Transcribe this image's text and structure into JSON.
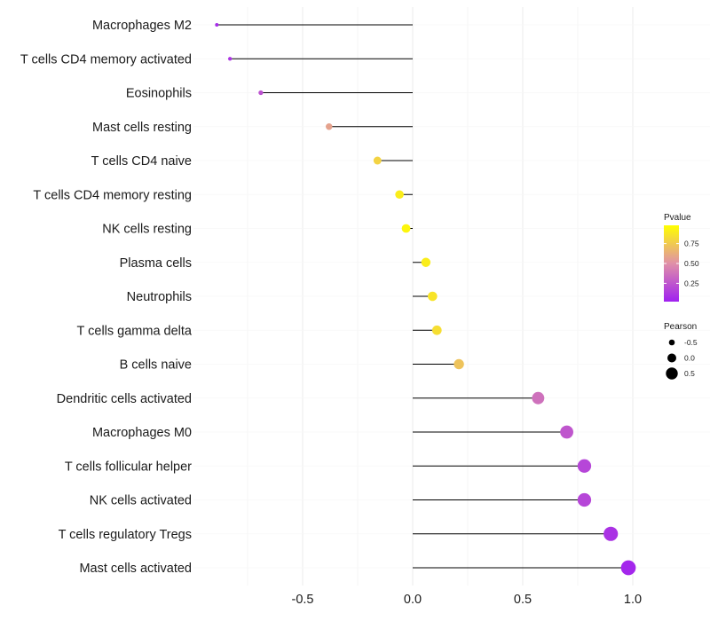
{
  "chart_data": {
    "type": "lollipop",
    "x": {
      "ticks": [
        -0.5,
        0.0,
        0.5,
        1.0
      ],
      "tick_labels": [
        "-0.5",
        "0.0",
        "0.5",
        "1.0"
      ],
      "minor_ticks": [
        -0.75,
        -0.25,
        0.25,
        0.75
      ],
      "range": [
        -0.97,
        1.03
      ]
    },
    "rows": [
      {
        "label": "Macrophages M2",
        "value": -0.89,
        "pvalue": 0.05
      },
      {
        "label": "T cells CD4 memory activated",
        "value": -0.83,
        "pvalue": 0.09
      },
      {
        "label": "Eosinophils",
        "value": -0.69,
        "pvalue": 0.22
      },
      {
        "label": "Mast cells resting",
        "value": -0.38,
        "pvalue": 0.58
      },
      {
        "label": "T cells CD4 naive",
        "value": -0.16,
        "pvalue": 0.8
      },
      {
        "label": "T cells CD4 memory resting",
        "value": -0.06,
        "pvalue": 0.92
      },
      {
        "label": "NK cells resting",
        "value": -0.03,
        "pvalue": 0.96
      },
      {
        "label": "Plasma cells",
        "value": 0.06,
        "pvalue": 0.92
      },
      {
        "label": "Neutrophils",
        "value": 0.09,
        "pvalue": 0.88
      },
      {
        "label": "T cells gamma delta",
        "value": 0.11,
        "pvalue": 0.85
      },
      {
        "label": "B cells naive",
        "value": 0.21,
        "pvalue": 0.73
      },
      {
        "label": "Dendritic cells activated",
        "value": 0.57,
        "pvalue": 0.36
      },
      {
        "label": "Macrophages M0",
        "value": 0.7,
        "pvalue": 0.24
      },
      {
        "label": "T cells follicular helper",
        "value": 0.78,
        "pvalue": 0.17
      },
      {
        "label": "NK cells activated",
        "value": 0.78,
        "pvalue": 0.17
      },
      {
        "label": "T cells regulatory  Tregs",
        "value": 0.9,
        "pvalue": 0.08
      },
      {
        "label": "Mast cells activated",
        "value": 0.98,
        "pvalue": 0.03
      }
    ],
    "legend": {
      "color": {
        "title": "Pvalue",
        "ticks": [
          0.25,
          0.5,
          0.75
        ],
        "tick_labels": [
          "0.25",
          "0.50",
          "0.75"
        ],
        "range": [
          0.02,
          0.98
        ],
        "low_color": "#a020f0",
        "mid_color": "#e090a8",
        "high_color": "#ffff00"
      },
      "size": {
        "title": "Pearson",
        "values": [
          -0.5,
          0.0,
          0.5
        ],
        "labels": [
          "-0.5",
          "0.0",
          "0.5"
        ]
      }
    }
  }
}
